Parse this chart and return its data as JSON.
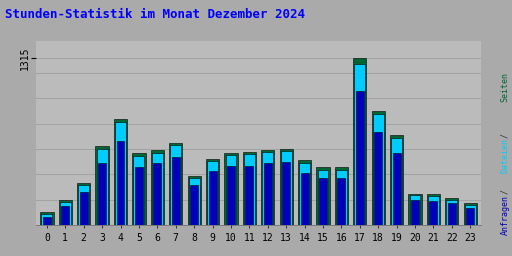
{
  "title": "Stunden-Statistik im Monat Dezember 2024",
  "title_color": "#0000ff",
  "ylabel_right": "Seiten / Dateien / Anfragen",
  "xlabel_values": [
    0,
    1,
    2,
    3,
    4,
    5,
    6,
    7,
    8,
    9,
    10,
    11,
    12,
    13,
    14,
    15,
    16,
    17,
    18,
    19,
    20,
    21,
    22,
    23
  ],
  "seiten": [
    105,
    195,
    330,
    620,
    840,
    565,
    590,
    650,
    385,
    520,
    570,
    575,
    595,
    600,
    510,
    455,
    455,
    1315,
    900,
    710,
    250,
    245,
    215,
    175
  ],
  "dateien": [
    90,
    185,
    315,
    600,
    810,
    545,
    570,
    635,
    370,
    505,
    555,
    558,
    575,
    582,
    493,
    435,
    435,
    1270,
    875,
    685,
    235,
    230,
    200,
    160
  ],
  "anfragen": [
    65,
    155,
    265,
    490,
    660,
    460,
    490,
    535,
    315,
    425,
    465,
    468,
    490,
    495,
    415,
    375,
    375,
    1060,
    730,
    570,
    195,
    192,
    175,
    135
  ],
  "color_seiten": "#006633",
  "color_dateien": "#00ccff",
  "color_anfragen": "#0000bb",
  "background_color": "#aaaaaa",
  "plot_bg_color": "#bbbbbb",
  "ylim_max": 1450,
  "ytick_val": 1315,
  "ytick_label": "1315",
  "grid_steps": [
    200,
    400,
    600,
    800,
    1000,
    1200,
    1315
  ],
  "grid_color": "#999999"
}
